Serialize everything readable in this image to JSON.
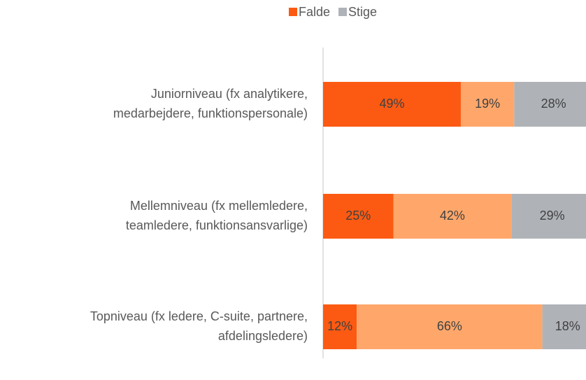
{
  "chart_data": {
    "type": "stacked-bar-horizontal",
    "categories": [
      [
        "Juniorniveau (fx analytikere,",
        "medarbejdere, funktionspersonale)"
      ],
      [
        "Mellemniveau (fx mellemledere,",
        "teamledere, funktionsansvarlige)"
      ],
      [
        "Topniveau (fx ledere, C-suite, partnere,",
        "afdelingsledere)"
      ]
    ],
    "series": [
      {
        "name": "Falde",
        "color": "#fc5a12",
        "values": [
          49,
          25,
          12
        ],
        "value_labels": [
          "49%",
          "25%",
          "12%"
        ]
      },
      {
        "color": "#ffa76b",
        "values": [
          19,
          42,
          66
        ],
        "value_labels": [
          "19%",
          "42%",
          "66%"
        ]
      },
      {
        "name": "Stige",
        "color": "#afb3b8",
        "values": [
          28,
          29,
          18
        ],
        "value_labels": [
          "28%",
          "29%",
          "18%"
        ]
      }
    ]
  }
}
